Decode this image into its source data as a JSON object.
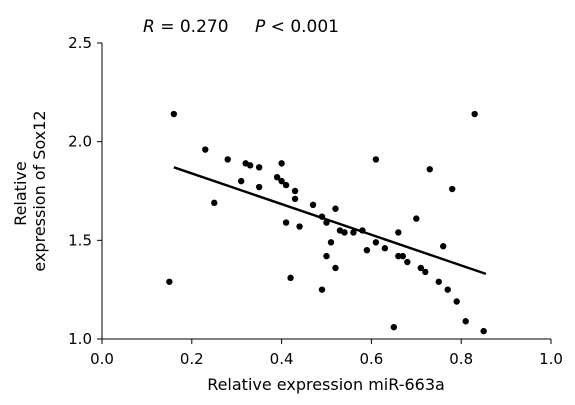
{
  "annotations": {
    "r_symbol": "R",
    "r_rest": " = 0.270",
    "p_symbol": "P",
    "p_rest": " < 0.001"
  },
  "chart_data": {
    "type": "scatter",
    "title": "",
    "xlabel": "Relative expression miR-663a",
    "ylabel_lines": [
      "Relative",
      "expression of Sox12"
    ],
    "xlim": [
      0,
      1
    ],
    "ylim": [
      1,
      2.5
    ],
    "xticks": [
      0,
      0.2,
      0.4,
      0.6,
      0.8,
      1.0
    ],
    "xtick_labels": [
      "0.0",
      "0.2",
      "0.4",
      "0.6",
      "0.8",
      "1.0"
    ],
    "yticks": [
      1.0,
      1.5,
      2.0,
      2.5
    ],
    "ytick_labels": [
      "1.0",
      "1.5",
      "2.0",
      "2.5"
    ],
    "grid": false,
    "trendline": {
      "x": [
        0.16,
        0.855
      ],
      "y": [
        1.87,
        1.33
      ]
    },
    "points": [
      {
        "x": 0.15,
        "y": 1.29
      },
      {
        "x": 0.16,
        "y": 2.14
      },
      {
        "x": 0.23,
        "y": 1.96
      },
      {
        "x": 0.25,
        "y": 1.69
      },
      {
        "x": 0.28,
        "y": 1.91
      },
      {
        "x": 0.31,
        "y": 1.8
      },
      {
        "x": 0.32,
        "y": 1.89
      },
      {
        "x": 0.33,
        "y": 1.88
      },
      {
        "x": 0.35,
        "y": 1.87
      },
      {
        "x": 0.35,
        "y": 1.77
      },
      {
        "x": 0.39,
        "y": 1.82
      },
      {
        "x": 0.4,
        "y": 1.89
      },
      {
        "x": 0.4,
        "y": 1.8
      },
      {
        "x": 0.41,
        "y": 1.78
      },
      {
        "x": 0.41,
        "y": 1.59
      },
      {
        "x": 0.42,
        "y": 1.31
      },
      {
        "x": 0.43,
        "y": 1.75
      },
      {
        "x": 0.43,
        "y": 1.71
      },
      {
        "x": 0.44,
        "y": 1.57
      },
      {
        "x": 0.47,
        "y": 1.68
      },
      {
        "x": 0.49,
        "y": 1.25
      },
      {
        "x": 0.49,
        "y": 1.62
      },
      {
        "x": 0.5,
        "y": 1.59
      },
      {
        "x": 0.5,
        "y": 1.42
      },
      {
        "x": 0.51,
        "y": 1.49
      },
      {
        "x": 0.52,
        "y": 1.66
      },
      {
        "x": 0.52,
        "y": 1.36
      },
      {
        "x": 0.53,
        "y": 1.55
      },
      {
        "x": 0.54,
        "y": 1.54
      },
      {
        "x": 0.56,
        "y": 1.54
      },
      {
        "x": 0.58,
        "y": 1.55
      },
      {
        "x": 0.59,
        "y": 1.45
      },
      {
        "x": 0.61,
        "y": 1.91
      },
      {
        "x": 0.61,
        "y": 1.49
      },
      {
        "x": 0.63,
        "y": 1.46
      },
      {
        "x": 0.65,
        "y": 1.06
      },
      {
        "x": 0.66,
        "y": 1.54
      },
      {
        "x": 0.66,
        "y": 1.42
      },
      {
        "x": 0.67,
        "y": 1.42
      },
      {
        "x": 0.68,
        "y": 1.39
      },
      {
        "x": 0.7,
        "y": 1.61
      },
      {
        "x": 0.71,
        "y": 1.36
      },
      {
        "x": 0.72,
        "y": 1.34
      },
      {
        "x": 0.73,
        "y": 1.86
      },
      {
        "x": 0.75,
        "y": 1.29
      },
      {
        "x": 0.76,
        "y": 1.47
      },
      {
        "x": 0.77,
        "y": 1.25
      },
      {
        "x": 0.78,
        "y": 1.76
      },
      {
        "x": 0.79,
        "y": 1.19
      },
      {
        "x": 0.81,
        "y": 1.09
      },
      {
        "x": 0.83,
        "y": 2.14
      },
      {
        "x": 0.85,
        "y": 1.04
      }
    ]
  }
}
